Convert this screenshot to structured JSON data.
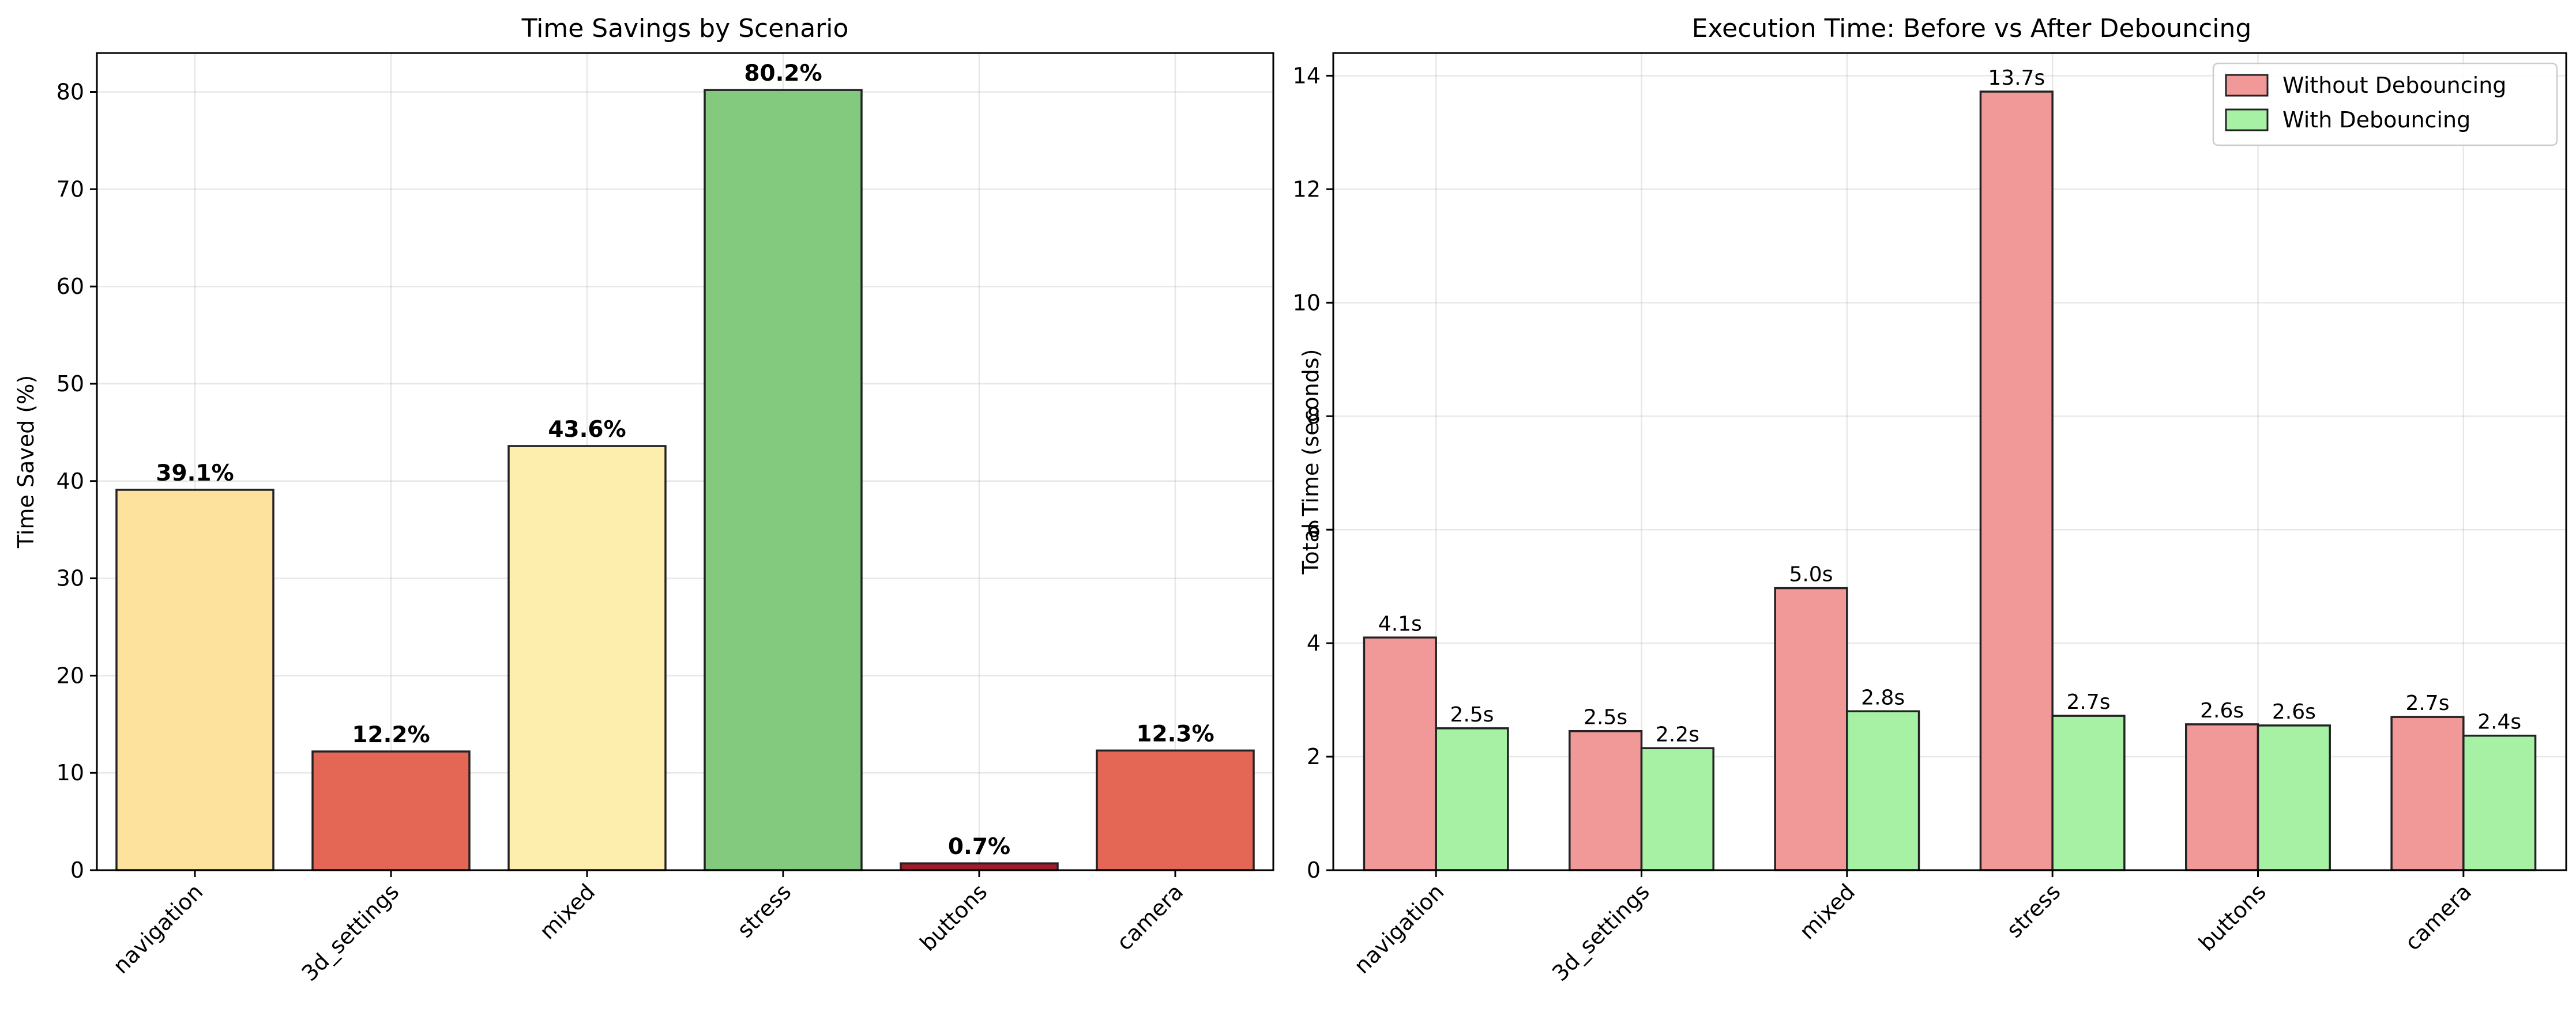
{
  "chart_data": [
    {
      "type": "bar",
      "title": "Time Savings by Scenario",
      "xlabel": "",
      "ylabel": "Time Saved (%)",
      "categories": [
        "navigation",
        "3d_settings",
        "mixed",
        "stress",
        "buttons",
        "camera"
      ],
      "values": [
        39.1,
        12.2,
        43.6,
        80.2,
        0.7,
        12.3
      ],
      "value_labels": [
        "39.1%",
        "12.2%",
        "43.6%",
        "80.2%",
        "0.7%",
        "12.3%"
      ],
      "colors": [
        "#fde29e",
        "#e46655",
        "#fdeead",
        "#83c97e",
        "#a01c2a",
        "#e46655"
      ],
      "ylim": [
        0,
        84
      ],
      "yticks": [
        0,
        10,
        20,
        30,
        40,
        50,
        60,
        70,
        80
      ],
      "ytick_labels": [
        "0",
        "10",
        "20",
        "30",
        "40",
        "50",
        "60",
        "70",
        "80"
      ],
      "grid": true
    },
    {
      "type": "bar",
      "title": "Execution Time: Before vs After Debouncing",
      "xlabel": "",
      "ylabel": "Total Time (seconds)",
      "categories": [
        "navigation",
        "3d_settings",
        "mixed",
        "stress",
        "buttons",
        "camera"
      ],
      "series": [
        {
          "name": "Without Debouncing",
          "color": "#f19999",
          "values": [
            4.1,
            2.45,
            4.97,
            13.72,
            2.57,
            2.7
          ],
          "value_labels": [
            "4.1s",
            "2.5s",
            "5.0s",
            "13.7s",
            "2.6s",
            "2.7s"
          ]
        },
        {
          "name": "With Debouncing",
          "color": "#a6f1a4",
          "values": [
            2.5,
            2.15,
            2.8,
            2.72,
            2.55,
            2.37
          ],
          "value_labels": [
            "2.5s",
            "2.2s",
            "2.8s",
            "2.7s",
            "2.6s",
            "2.4s"
          ]
        }
      ],
      "ylim": [
        0,
        14.4
      ],
      "yticks": [
        0,
        2,
        4,
        6,
        8,
        10,
        12,
        14
      ],
      "ytick_labels": [
        "0",
        "2",
        "4",
        "6",
        "8",
        "10",
        "12",
        "14"
      ],
      "legend": "upper right",
      "grid": true
    }
  ]
}
